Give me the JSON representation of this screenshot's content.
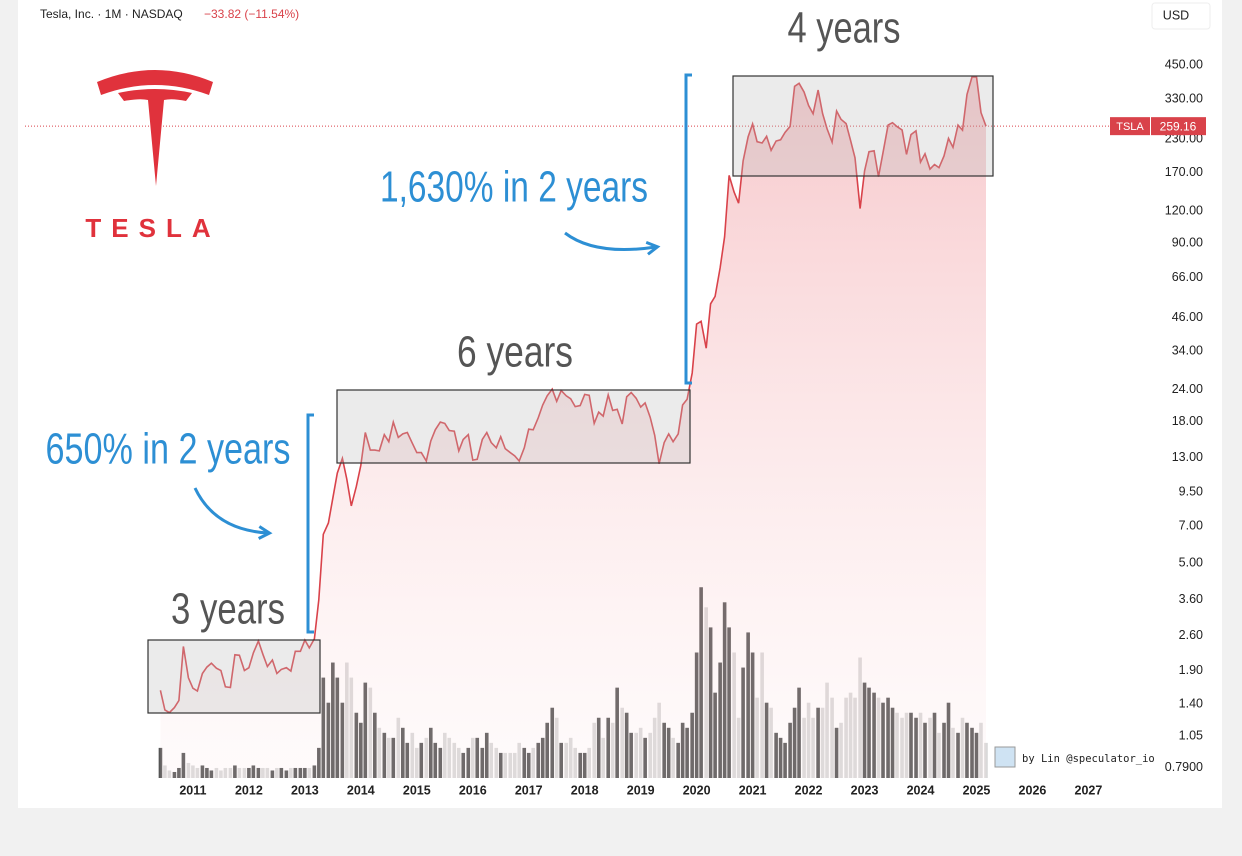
{
  "header": {
    "title": "Tesla, Inc. · 1M · NASDAQ",
    "change": "−33.82 (−11.54%)",
    "currency": "USD"
  },
  "logo": {
    "wordmark": "TESLA"
  },
  "credit": "by Lin @speculator_io",
  "chart_data": {
    "type": "line",
    "log_y": true,
    "annotations": [
      "3 years",
      "6 years",
      "4 years",
      "650% in 2 years",
      "1,630% in 2 years"
    ],
    "x": [
      2010.42,
      2010.5,
      2010.58,
      2010.67,
      2010.75,
      2010.83,
      2010.92,
      2011,
      2011.08,
      2011.17,
      2011.25,
      2011.33,
      2011.42,
      2011.5,
      2011.58,
      2011.67,
      2011.75,
      2011.83,
      2011.92,
      2012,
      2012.08,
      2012.17,
      2012.25,
      2012.33,
      2012.42,
      2012.5,
      2012.58,
      2012.67,
      2012.75,
      2012.83,
      2012.92,
      2013,
      2013.08,
      2013.17,
      2013.25,
      2013.33,
      2013.42,
      2013.5,
      2013.58,
      2013.67,
      2013.75,
      2013.83,
      2013.92,
      2014,
      2014.08,
      2014.17,
      2014.25,
      2014.33,
      2014.42,
      2014.5,
      2014.58,
      2014.67,
      2014.75,
      2014.83,
      2014.92,
      2015,
      2015.08,
      2015.17,
      2015.25,
      2015.33,
      2015.42,
      2015.5,
      2015.58,
      2015.67,
      2015.75,
      2015.83,
      2015.92,
      2016,
      2016.08,
      2016.17,
      2016.25,
      2016.33,
      2016.42,
      2016.5,
      2016.58,
      2016.67,
      2016.75,
      2016.83,
      2016.92,
      2017,
      2017.08,
      2017.17,
      2017.25,
      2017.33,
      2017.42,
      2017.5,
      2017.58,
      2017.67,
      2017.75,
      2017.83,
      2017.92,
      2018,
      2018.08,
      2018.17,
      2018.25,
      2018.33,
      2018.42,
      2018.5,
      2018.58,
      2018.67,
      2018.75,
      2018.83,
      2018.92,
      2019,
      2019.08,
      2019.17,
      2019.25,
      2019.33,
      2019.42,
      2019.5,
      2019.58,
      2019.67,
      2019.75,
      2019.83,
      2019.92,
      2020,
      2020.08,
      2020.17,
      2020.25,
      2020.33,
      2020.42,
      2020.5,
      2020.58,
      2020.67,
      2020.75,
      2020.83,
      2020.92,
      2021,
      2021.08,
      2021.17,
      2021.25,
      2021.33,
      2021.42,
      2021.5,
      2021.58,
      2021.67,
      2021.75,
      2021.83,
      2021.92,
      2022,
      2022.08,
      2022.17,
      2022.25,
      2022.33,
      2022.42,
      2022.5,
      2022.58,
      2022.67,
      2022.75,
      2022.83,
      2022.92,
      2023,
      2023.08,
      2023.17,
      2023.25,
      2023.33,
      2023.42,
      2023.5,
      2023.58,
      2023.67,
      2023.75,
      2023.83,
      2023.92,
      2024,
      2024.08,
      2024.17,
      2024.25,
      2024.33,
      2024.42,
      2024.5,
      2024.58,
      2024.67,
      2024.75,
      2024.83,
      2024.92,
      2025,
      2025.08,
      2025.17
    ],
    "series": [
      {
        "name": "TSLA",
        "color": "#d9424a",
        "values": [
          1.59,
          1.33,
          1.3,
          1.36,
          1.45,
          2.36,
          1.78,
          1.62,
          1.58,
          1.85,
          1.96,
          2.03,
          1.94,
          1.9,
          1.64,
          1.63,
          2.19,
          2.18,
          1.9,
          1.95,
          2.23,
          2.48,
          2.2,
          1.97,
          2.09,
          1.85,
          1.92,
          1.95,
          1.89,
          2.26,
          2.26,
          2.5,
          2.33,
          2.53,
          3.6,
          6.5,
          7.2,
          9,
          11.3,
          12.9,
          10.7,
          8.4,
          10,
          12.1,
          16.3,
          13.9,
          13.9,
          13.8,
          16,
          15,
          17.9,
          15.6,
          16.1,
          16.3,
          14.8,
          13.6,
          13.6,
          12.6,
          15.1,
          16.7,
          17.9,
          17.7,
          16.6,
          16.5,
          13.8,
          15.3,
          16,
          12.7,
          12.8,
          15.3,
          16.3,
          14.9,
          14.2,
          15.7,
          14.1,
          13.6,
          13.2,
          12.6,
          14.2,
          16.8,
          16.7,
          18.6,
          20.9,
          22.7,
          24.1,
          21.6,
          23.8,
          22.7,
          22.1,
          20.6,
          20.8,
          23,
          22.8,
          17.7,
          19.6,
          18.9,
          22.9,
          19.9,
          20.1,
          17.6,
          22.5,
          23.4,
          22.2,
          20.5,
          21.3,
          18.7,
          15.9,
          12.3,
          14.9,
          16.1,
          15,
          16.1,
          20.9,
          22,
          27.9,
          43.4,
          44.5,
          34.9,
          52.1,
          55.7,
          72,
          95.4,
          166.1,
          142.9,
          129.3,
          189.2,
          235.2,
          264.5,
          225.2,
          222.6,
          236.5,
          208.4,
          226.6,
          229.1,
          245.2,
          258.5,
          371.3,
          381.6,
          352.3,
          312.2,
          290.1,
          359.2,
          290.3,
          252.8,
          224.5,
          297.1,
          275.6,
          265.3,
          227.5,
          194.7,
          123.2,
          173.2,
          205.7,
          207.5,
          164.3,
          203.9,
          261.8,
          267.4,
          258.1,
          250.2,
          200.8,
          240.1,
          248.5,
          187.3,
          201.9,
          175.8,
          183.3,
          178.1,
          197.9,
          232.1,
          214.1,
          261.6,
          249.9,
          345.2,
          403.8,
          404.6,
          292.98,
          259.16
        ]
      },
      {
        "axis": "y2",
        "color": "#555555",
        "down_color": "#d9d9d9",
        "values": [
          0.6,
          0.25,
          0.15,
          0.12,
          0.2,
          0.5,
          0.3,
          0.25,
          0.2,
          0.25,
          0.2,
          0.15,
          0.2,
          0.15,
          0.2,
          0.2,
          0.25,
          0.2,
          0.2,
          0.2,
          0.25,
          0.2,
          0.2,
          0.2,
          0.15,
          0.2,
          0.2,
          0.15,
          0.2,
          0.2,
          0.2,
          0.2,
          0.2,
          0.25,
          0.6,
          2,
          1.5,
          2.3,
          2,
          1.5,
          2.3,
          2,
          1.3,
          1.1,
          1.9,
          1.8,
          1.3,
          1,
          0.9,
          0.8,
          0.8,
          1.2,
          1,
          0.7,
          0.9,
          0.6,
          0.7,
          0.8,
          1,
          0.7,
          0.6,
          0.9,
          0.8,
          0.7,
          0.6,
          0.5,
          0.6,
          0.8,
          0.8,
          0.6,
          0.9,
          0.7,
          0.6,
          0.5,
          0.5,
          0.5,
          0.5,
          0.7,
          0.6,
          0.5,
          0.6,
          0.7,
          0.8,
          1.1,
          1.4,
          1.2,
          0.7,
          0.7,
          0.8,
          0.6,
          0.5,
          0.5,
          0.6,
          1.1,
          1.2,
          0.8,
          1.2,
          1.1,
          1.8,
          1.4,
          1.3,
          0.9,
          0.9,
          1,
          0.8,
          0.9,
          1.2,
          1.5,
          1.1,
          1,
          0.8,
          0.7,
          1.1,
          1,
          1.3,
          2.5,
          3.8,
          3.4,
          3,
          1.7,
          2.3,
          3.5,
          3,
          2.5,
          1.2,
          2.2,
          2.9,
          2.5,
          1.6,
          2.5,
          1.5,
          1.4,
          0.9,
          0.8,
          0.7,
          1.1,
          1.4,
          1.8,
          1.2,
          1.5,
          1.2,
          1.4,
          1.4,
          1.9,
          1.6,
          1,
          1.1,
          1.6,
          1.7,
          1.6,
          2.4,
          1.9,
          1.8,
          1.7,
          1.6,
          1.5,
          1.6,
          1.4,
          1.3,
          1.2,
          1.3,
          1.3,
          1.2,
          1.3,
          1.1,
          1.2,
          1.3,
          0.9,
          1.1,
          1.5,
          1,
          0.9,
          1.2,
          1.1,
          1,
          0.9,
          1.1,
          0.7
        ]
      }
    ],
    "xlim": [
      2008,
      2028.1
    ],
    "xticks": [
      2011,
      2012,
      2013,
      2014,
      2015,
      2016,
      2017,
      2018,
      2019,
      2020,
      2021,
      2022,
      2023,
      2024,
      2025,
      2026,
      2027
    ],
    "ylim": [
      0.72,
      646
    ],
    "yticks": [
      {
        "value": 0.79,
        "label": "0.7900"
      },
      1.05,
      {
        "value": 1.4,
        "label": "1.40"
      },
      {
        "value": 1.9,
        "label": "1.90"
      },
      {
        "value": 2.6,
        "label": "2.60"
      },
      {
        "value": 3.6,
        "label": "3.60"
      },
      {
        "value": 5,
        "label": "5.00"
      },
      {
        "value": 7,
        "label": "7.00"
      },
      {
        "value": 9.5,
        "label": "9.50"
      },
      {
        "value": 13,
        "label": "13.00"
      },
      {
        "value": 18,
        "label": "18.00"
      },
      {
        "value": 24,
        "label": "24.00"
      },
      {
        "value": 34,
        "label": "34.00"
      },
      {
        "value": 46,
        "label": "46.00"
      },
      {
        "value": 66,
        "label": "66.00"
      },
      {
        "value": 90,
        "label": "90.00"
      },
      {
        "value": 120,
        "label": "120.00"
      },
      {
        "value": 170,
        "label": "170.00"
      },
      {
        "value": 230,
        "label": "230.00"
      },
      {
        "value": 330,
        "label": "330.00"
      },
      {
        "value": 450,
        "label": "450.00"
      }
    ],
    "y2lim": [
      0,
      15
    ],
    "grid": false
  }
}
